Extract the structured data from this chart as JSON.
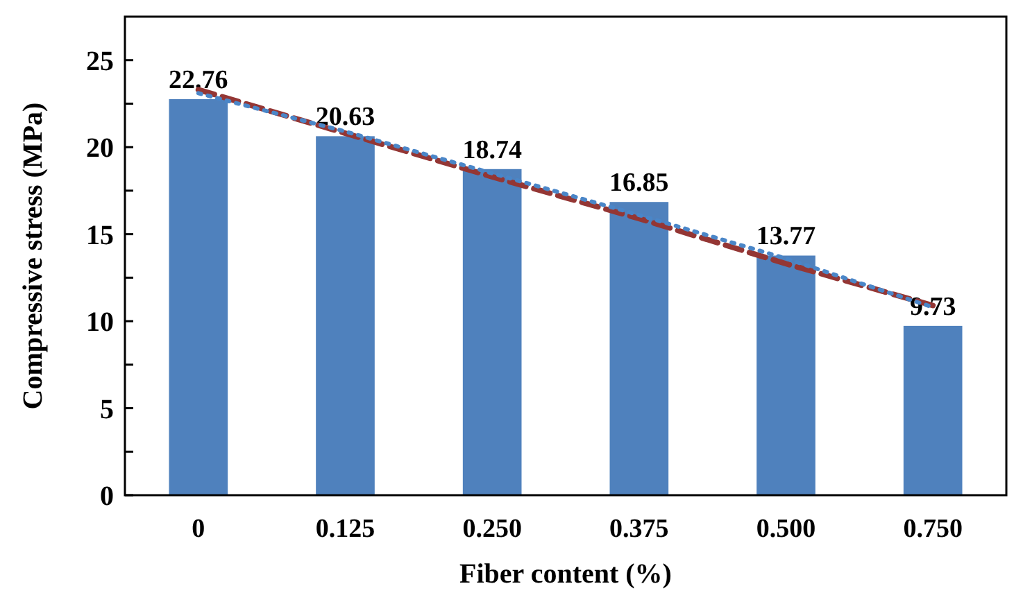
{
  "chart_data": {
    "type": "bar",
    "xlabel": "Fiber content (%)",
    "ylabel": "Compressive stress (MPa)",
    "categories": [
      "0",
      "0.125",
      "0.250",
      "0.375",
      "0.500",
      "0.750"
    ],
    "series": [
      {
        "color": "#4f81bd",
        "values": [
          22.76,
          20.63,
          18.74,
          16.85,
          13.77,
          9.73
        ],
        "value_labels": [
          "22.76",
          "20.63",
          "18.74",
          "16.85",
          "13.77",
          "9.73"
        ]
      },
      {
        "type": "line",
        "color": "#943634",
        "line_style": "dashed",
        "values": [
          23.3,
          20.8,
          18.3,
          15.9,
          13.3,
          10.9
        ]
      },
      {
        "type": "line",
        "color": "#4a86c8",
        "line_style": "dotted",
        "values": [
          23.1,
          20.9,
          18.5,
          16.1,
          13.6,
          10.8
        ]
      }
    ],
    "ylim": [
      0,
      27.5
    ],
    "yticks": [
      0,
      {
        "value": 2.5,
        "label": null
      },
      5,
      {
        "value": 7.5,
        "label": null
      },
      10,
      {
        "value": 12.5,
        "label": null
      },
      15,
      {
        "value": 17.5,
        "label": null
      },
      20,
      {
        "value": 22.5,
        "label": null
      },
      25
    ],
    "grid": false
  }
}
